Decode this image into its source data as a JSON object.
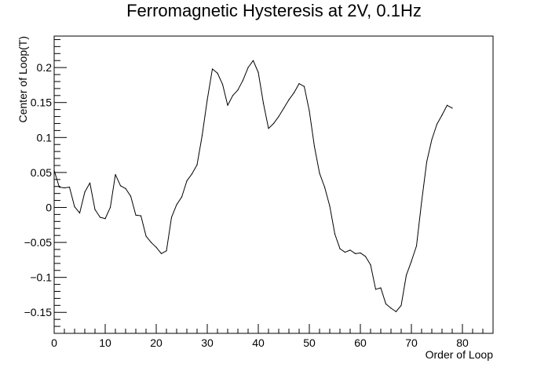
{
  "chart_data": {
    "type": "line",
    "title": "Ferromagnetic Hysteresis at 2V, 0.1Hz",
    "xlabel": "Order of Loop",
    "ylabel": "Center of Loop(T)",
    "xlim": [
      0,
      86
    ],
    "ylim": [
      -0.18,
      0.245
    ],
    "grid": false,
    "x_ticks": [
      0,
      10,
      20,
      30,
      40,
      50,
      60,
      70,
      80
    ],
    "x_tick_labels": [
      "0",
      "10",
      "20",
      "30",
      "40",
      "50",
      "60",
      "70",
      "80"
    ],
    "y_ticks": [
      -0.15,
      -0.1,
      -0.05,
      0,
      0.05,
      0.1,
      0.15,
      0.2
    ],
    "y_tick_labels": [
      "−0.15",
      "−0.1",
      "−0.05",
      "0",
      "0.05",
      "0.1",
      "0.15",
      "0.2"
    ],
    "series": [
      {
        "color": "#000000",
        "x": [
          0,
          1,
          2,
          3,
          4,
          5,
          6,
          7,
          8,
          9,
          10,
          11,
          12,
          13,
          14,
          15,
          16,
          17,
          18,
          19,
          20,
          21,
          22,
          23,
          24,
          25,
          26,
          27,
          28,
          29,
          30,
          31,
          32,
          33,
          34,
          35,
          36,
          37,
          38,
          39,
          40,
          41,
          42,
          43,
          44,
          45,
          46,
          47,
          48,
          49,
          50,
          51,
          52,
          53,
          54,
          55,
          56,
          57,
          58,
          59,
          60,
          61,
          62,
          63,
          64,
          65,
          66,
          67,
          68,
          69,
          70,
          71,
          72,
          73,
          74,
          75,
          76,
          77,
          78
        ],
        "y": [
          0.053,
          0.029,
          0.028,
          0.029,
          0.001,
          -0.008,
          0.022,
          0.035,
          -0.003,
          -0.014,
          -0.016,
          0.0,
          0.047,
          0.031,
          0.027,
          0.016,
          -0.011,
          -0.012,
          -0.041,
          -0.05,
          -0.057,
          -0.066,
          -0.062,
          -0.014,
          0.004,
          0.015,
          0.038,
          0.048,
          0.061,
          0.103,
          0.154,
          0.198,
          0.192,
          0.176,
          0.146,
          0.16,
          0.168,
          0.182,
          0.2,
          0.21,
          0.193,
          0.149,
          0.113,
          0.12,
          0.13,
          0.142,
          0.154,
          0.164,
          0.177,
          0.173,
          0.138,
          0.087,
          0.049,
          0.029,
          0.002,
          -0.038,
          -0.059,
          -0.064,
          -0.061,
          -0.066,
          -0.065,
          -0.07,
          -0.082,
          -0.117,
          -0.115,
          -0.138,
          -0.144,
          -0.149,
          -0.14,
          -0.097,
          -0.077,
          -0.055,
          0.008,
          0.065,
          0.097,
          0.119,
          0.132,
          0.146,
          0.142
        ]
      }
    ]
  }
}
